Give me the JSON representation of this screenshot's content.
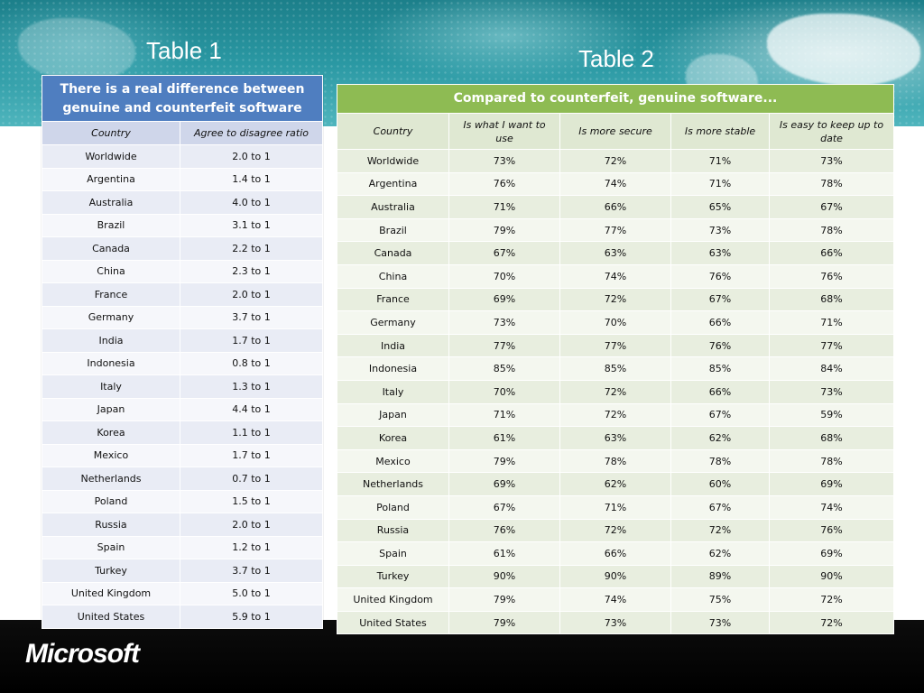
{
  "slide": {
    "table1_title": "Table 1",
    "table2_title": "Table 2",
    "logo_text": "Microsoft",
    "colors": {
      "banner": "#2a98a3",
      "table1_header": "#4f7ec0",
      "table2_header": "#8ebb53",
      "footer": "#000000"
    }
  },
  "table1": {
    "header": "There is a real difference between genuine and counterfeit software",
    "columns": [
      "Country",
      "Agree to disagree ratio"
    ],
    "rows": [
      [
        "Worldwide",
        "2.0 to 1"
      ],
      [
        "Argentina",
        "1.4 to 1"
      ],
      [
        "Australia",
        "4.0 to 1"
      ],
      [
        "Brazil",
        "3.1 to 1"
      ],
      [
        "Canada",
        "2.2 to 1"
      ],
      [
        "China",
        "2.3 to 1"
      ],
      [
        "France",
        "2.0 to 1"
      ],
      [
        "Germany",
        "3.7 to 1"
      ],
      [
        "India",
        "1.7 to 1"
      ],
      [
        "Indonesia",
        "0.8 to 1"
      ],
      [
        "Italy",
        "1.3 to 1"
      ],
      [
        "Japan",
        "4.4 to 1"
      ],
      [
        "Korea",
        "1.1 to 1"
      ],
      [
        "Mexico",
        "1.7 to 1"
      ],
      [
        "Netherlands",
        "0.7 to 1"
      ],
      [
        "Poland",
        "1.5 to 1"
      ],
      [
        "Russia",
        "2.0 to 1"
      ],
      [
        "Spain",
        "1.2 to 1"
      ],
      [
        "Turkey",
        "3.7 to 1"
      ],
      [
        "United Kingdom",
        "5.0 to 1"
      ],
      [
        "United States",
        "5.9 to 1"
      ]
    ]
  },
  "table2": {
    "header": "Compared to counterfeit, genuine software...",
    "columns": [
      "Country",
      "Is what I want to use",
      "Is more secure",
      "Is more stable",
      "Is easy to keep up to date"
    ],
    "rows": [
      [
        "Worldwide",
        "73%",
        "72%",
        "71%",
        "73%"
      ],
      [
        "Argentina",
        "76%",
        "74%",
        "71%",
        "78%"
      ],
      [
        "Australia",
        "71%",
        "66%",
        "65%",
        "67%"
      ],
      [
        "Brazil",
        "79%",
        "77%",
        "73%",
        "78%"
      ],
      [
        "Canada",
        "67%",
        "63%",
        "63%",
        "66%"
      ],
      [
        "China",
        "70%",
        "74%",
        "76%",
        "76%"
      ],
      [
        "France",
        "69%",
        "72%",
        "67%",
        "68%"
      ],
      [
        "Germany",
        "73%",
        "70%",
        "66%",
        "71%"
      ],
      [
        "India",
        "77%",
        "77%",
        "76%",
        "77%"
      ],
      [
        "Indonesia",
        "85%",
        "85%",
        "85%",
        "84%"
      ],
      [
        "Italy",
        "70%",
        "72%",
        "66%",
        "73%"
      ],
      [
        "Japan",
        "71%",
        "72%",
        "67%",
        "59%"
      ],
      [
        "Korea",
        "61%",
        "63%",
        "62%",
        "68%"
      ],
      [
        "Mexico",
        "79%",
        "78%",
        "78%",
        "78%"
      ],
      [
        "Netherlands",
        "69%",
        "62%",
        "60%",
        "69%"
      ],
      [
        "Poland",
        "67%",
        "71%",
        "67%",
        "74%"
      ],
      [
        "Russia",
        "76%",
        "72%",
        "72%",
        "76%"
      ],
      [
        "Spain",
        "61%",
        "66%",
        "62%",
        "69%"
      ],
      [
        "Turkey",
        "90%",
        "90%",
        "89%",
        "90%"
      ],
      [
        "United Kingdom",
        "79%",
        "74%",
        "75%",
        "72%"
      ],
      [
        "United States",
        "79%",
        "73%",
        "73%",
        "72%"
      ]
    ]
  }
}
